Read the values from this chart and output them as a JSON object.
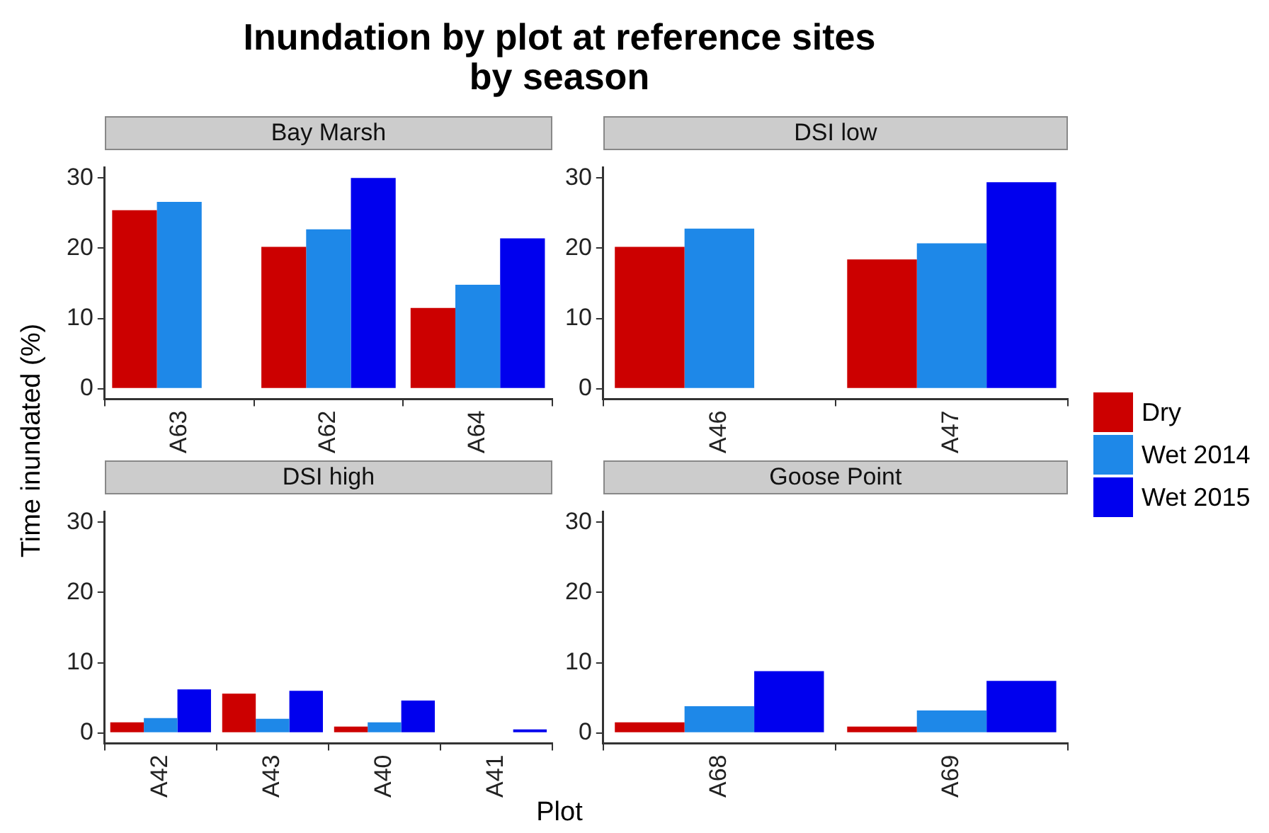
{
  "chart_data": [
    {
      "type": "bar",
      "title": "Inundation by plot at reference sites\nby season",
      "subtitle": "Bay Marsh",
      "xlabel": "Plot",
      "ylabel": "Time inundated (%)",
      "legend": "right",
      "categories": [
        "A63",
        "A62",
        "A64"
      ],
      "ylim": [
        -1.5,
        31.5
      ],
      "yticks": [
        0,
        10,
        20,
        30
      ],
      "grid": false,
      "series": [
        {
          "name": "Dry",
          "color": "#cc0000",
          "values": [
            25.4,
            20.2,
            11.5
          ]
        },
        {
          "name": "Wet 2014",
          "color": "#1e88e8",
          "values": [
            26.6,
            22.7,
            14.8
          ]
        },
        {
          "name": "Wet 2015",
          "color": "#0000ee",
          "values": [
            null,
            30.0,
            21.4
          ]
        }
      ]
    },
    {
      "type": "bar",
      "subtitle": "DSI low",
      "categories": [
        "A46",
        "A47"
      ],
      "ylim": [
        -1.5,
        31.5
      ],
      "yticks": [
        0,
        10,
        20,
        30
      ],
      "grid": false,
      "series": [
        {
          "color": "#cc0000",
          "values": [
            20.2,
            18.4
          ]
        },
        {
          "color": "#1e88e8",
          "values": [
            22.8,
            20.7
          ]
        },
        {
          "color": "#0000ee",
          "values": [
            null,
            29.4
          ]
        }
      ]
    },
    {
      "type": "bar",
      "subtitle": "DSI high",
      "categories": [
        "A42",
        "A43",
        "A40",
        "A41"
      ],
      "ylim": [
        -1.5,
        31.5
      ],
      "yticks": [
        0,
        10,
        20,
        30
      ],
      "grid": false,
      "series": [
        {
          "color": "#cc0000",
          "values": [
            1.5,
            5.6,
            0.9,
            null
          ]
        },
        {
          "color": "#1e88e8",
          "values": [
            2.1,
            2.0,
            1.5,
            0
          ]
        },
        {
          "color": "#0000ee",
          "values": [
            6.2,
            6.0,
            4.6,
            0.5
          ]
        }
      ]
    },
    {
      "type": "bar",
      "subtitle": "Goose Point",
      "categories": [
        "A68",
        "A69"
      ],
      "ylim": [
        -1.5,
        31.5
      ],
      "yticks": [
        0,
        10,
        20,
        30
      ],
      "grid": false,
      "series": [
        {
          "color": "#cc0000",
          "values": [
            1.5,
            0.9
          ]
        },
        {
          "color": "#1e88e8",
          "values": [
            3.8,
            3.2
          ]
        },
        {
          "color": "#0000ee",
          "values": [
            8.8,
            7.4
          ]
        }
      ]
    }
  ]
}
